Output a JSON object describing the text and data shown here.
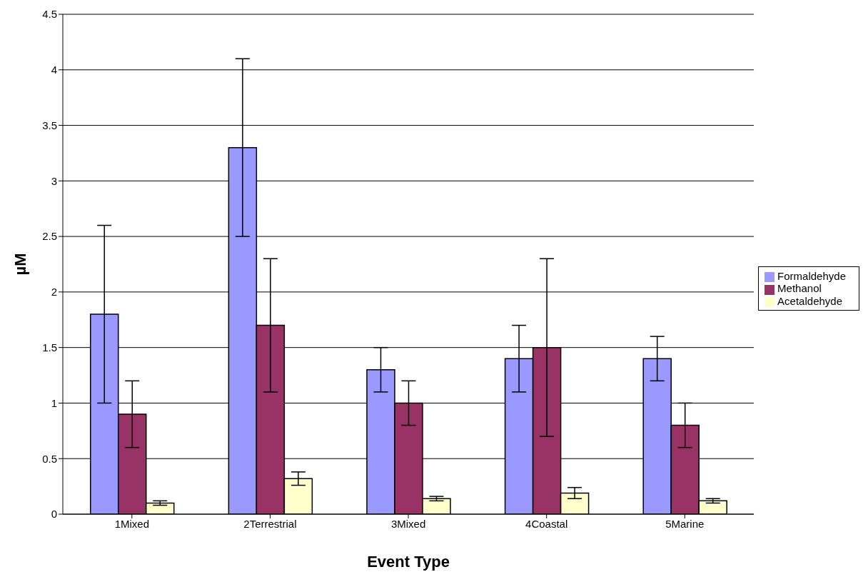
{
  "chart_data": {
    "type": "bar",
    "xlabel": "Event Type",
    "ylabel": "µM",
    "categories": [
      "1Mixed",
      "2Terrestrial",
      "3Mixed",
      "4Coastal",
      "5Marine"
    ],
    "series": [
      {
        "name": "Formaldehyde",
        "color": "#9999ff",
        "values": [
          1.8,
          3.3,
          1.3,
          1.4,
          1.4
        ],
        "errors": [
          0.8,
          0.8,
          0.2,
          0.3,
          0.2
        ]
      },
      {
        "name": "Methanol",
        "color": "#993366",
        "values": [
          0.9,
          1.7,
          1.0,
          1.5,
          0.8
        ],
        "errors": [
          0.3,
          0.6,
          0.2,
          0.8,
          0.2
        ]
      },
      {
        "name": "Acetaldehyde",
        "color": "#ffffcc",
        "values": [
          0.1,
          0.32,
          0.14,
          0.19,
          0.12
        ],
        "errors": [
          0.02,
          0.06,
          0.02,
          0.05,
          0.02
        ]
      }
    ],
    "ylim": [
      0,
      4.5
    ],
    "yticks": [
      0,
      0.5,
      1,
      1.5,
      2,
      2.5,
      3,
      3.5,
      4,
      4.5
    ],
    "grid": "y",
    "legend": "right"
  }
}
